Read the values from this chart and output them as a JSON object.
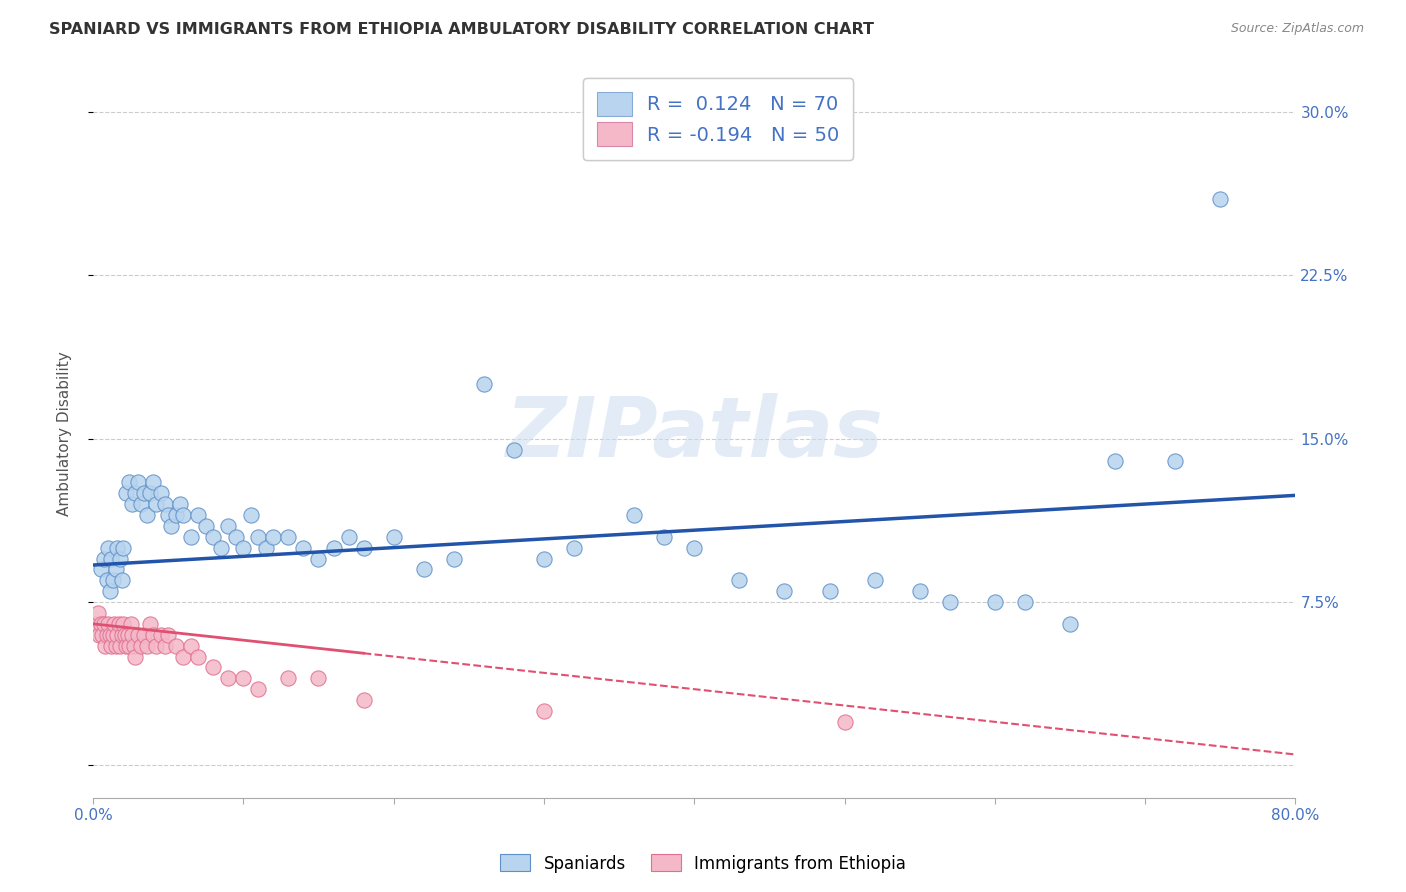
{
  "title": "SPANIARD VS IMMIGRANTS FROM ETHIOPIA AMBULATORY DISABILITY CORRELATION CHART",
  "source": "Source: ZipAtlas.com",
  "ylabel": "Ambulatory Disability",
  "yticks": [
    0.0,
    0.075,
    0.15,
    0.225,
    0.3
  ],
  "ytick_labels": [
    "",
    "7.5%",
    "15.0%",
    "22.5%",
    "30.0%"
  ],
  "xlim": [
    0.0,
    0.8
  ],
  "ylim": [
    -0.015,
    0.32
  ],
  "legend_entries": [
    {
      "color": "#b8d4ee",
      "R": "0.124",
      "N": "70"
    },
    {
      "color": "#f4b8c8",
      "R": "-0.194",
      "N": "50"
    }
  ],
  "legend_text_color": "#4472c4",
  "spaniards_facecolor": "#b8d4ee",
  "spaniards_edgecolor": "#6090c8",
  "ethiopia_facecolor": "#f4b8c8",
  "ethiopia_edgecolor": "#e07090",
  "spaniards_line_color": "#2255aa",
  "ethiopia_line_color": "#e05070",
  "watermark": "ZIPatlas",
  "spaniards_points": [
    [
      0.005,
      0.09
    ],
    [
      0.007,
      0.095
    ],
    [
      0.009,
      0.085
    ],
    [
      0.01,
      0.1
    ],
    [
      0.011,
      0.08
    ],
    [
      0.012,
      0.095
    ],
    [
      0.013,
      0.085
    ],
    [
      0.015,
      0.09
    ],
    [
      0.016,
      0.1
    ],
    [
      0.018,
      0.095
    ],
    [
      0.019,
      0.085
    ],
    [
      0.02,
      0.1
    ],
    [
      0.022,
      0.125
    ],
    [
      0.024,
      0.13
    ],
    [
      0.026,
      0.12
    ],
    [
      0.028,
      0.125
    ],
    [
      0.03,
      0.13
    ],
    [
      0.032,
      0.12
    ],
    [
      0.034,
      0.125
    ],
    [
      0.036,
      0.115
    ],
    [
      0.038,
      0.125
    ],
    [
      0.04,
      0.13
    ],
    [
      0.042,
      0.12
    ],
    [
      0.045,
      0.125
    ],
    [
      0.048,
      0.12
    ],
    [
      0.05,
      0.115
    ],
    [
      0.052,
      0.11
    ],
    [
      0.055,
      0.115
    ],
    [
      0.058,
      0.12
    ],
    [
      0.06,
      0.115
    ],
    [
      0.065,
      0.105
    ],
    [
      0.07,
      0.115
    ],
    [
      0.075,
      0.11
    ],
    [
      0.08,
      0.105
    ],
    [
      0.085,
      0.1
    ],
    [
      0.09,
      0.11
    ],
    [
      0.095,
      0.105
    ],
    [
      0.1,
      0.1
    ],
    [
      0.105,
      0.115
    ],
    [
      0.11,
      0.105
    ],
    [
      0.115,
      0.1
    ],
    [
      0.12,
      0.105
    ],
    [
      0.13,
      0.105
    ],
    [
      0.14,
      0.1
    ],
    [
      0.15,
      0.095
    ],
    [
      0.16,
      0.1
    ],
    [
      0.17,
      0.105
    ],
    [
      0.18,
      0.1
    ],
    [
      0.2,
      0.105
    ],
    [
      0.22,
      0.09
    ],
    [
      0.24,
      0.095
    ],
    [
      0.26,
      0.175
    ],
    [
      0.28,
      0.145
    ],
    [
      0.3,
      0.095
    ],
    [
      0.32,
      0.1
    ],
    [
      0.36,
      0.115
    ],
    [
      0.38,
      0.105
    ],
    [
      0.4,
      0.1
    ],
    [
      0.43,
      0.085
    ],
    [
      0.46,
      0.08
    ],
    [
      0.49,
      0.08
    ],
    [
      0.52,
      0.085
    ],
    [
      0.55,
      0.08
    ],
    [
      0.57,
      0.075
    ],
    [
      0.6,
      0.075
    ],
    [
      0.62,
      0.075
    ],
    [
      0.65,
      0.065
    ],
    [
      0.68,
      0.14
    ],
    [
      0.72,
      0.14
    ],
    [
      0.75,
      0.26
    ]
  ],
  "ethiopia_points": [
    [
      0.002,
      0.065
    ],
    [
      0.003,
      0.07
    ],
    [
      0.004,
      0.06
    ],
    [
      0.005,
      0.065
    ],
    [
      0.006,
      0.06
    ],
    [
      0.007,
      0.065
    ],
    [
      0.008,
      0.055
    ],
    [
      0.009,
      0.06
    ],
    [
      0.01,
      0.065
    ],
    [
      0.011,
      0.06
    ],
    [
      0.012,
      0.055
    ],
    [
      0.013,
      0.06
    ],
    [
      0.014,
      0.065
    ],
    [
      0.015,
      0.055
    ],
    [
      0.016,
      0.06
    ],
    [
      0.017,
      0.065
    ],
    [
      0.018,
      0.055
    ],
    [
      0.019,
      0.06
    ],
    [
      0.02,
      0.065
    ],
    [
      0.021,
      0.06
    ],
    [
      0.022,
      0.055
    ],
    [
      0.023,
      0.06
    ],
    [
      0.024,
      0.055
    ],
    [
      0.025,
      0.065
    ],
    [
      0.026,
      0.06
    ],
    [
      0.027,
      0.055
    ],
    [
      0.028,
      0.05
    ],
    [
      0.03,
      0.06
    ],
    [
      0.032,
      0.055
    ],
    [
      0.034,
      0.06
    ],
    [
      0.036,
      0.055
    ],
    [
      0.038,
      0.065
    ],
    [
      0.04,
      0.06
    ],
    [
      0.042,
      0.055
    ],
    [
      0.045,
      0.06
    ],
    [
      0.048,
      0.055
    ],
    [
      0.05,
      0.06
    ],
    [
      0.055,
      0.055
    ],
    [
      0.06,
      0.05
    ],
    [
      0.065,
      0.055
    ],
    [
      0.07,
      0.05
    ],
    [
      0.08,
      0.045
    ],
    [
      0.09,
      0.04
    ],
    [
      0.1,
      0.04
    ],
    [
      0.11,
      0.035
    ],
    [
      0.13,
      0.04
    ],
    [
      0.15,
      0.04
    ],
    [
      0.18,
      0.03
    ],
    [
      0.3,
      0.025
    ],
    [
      0.5,
      0.02
    ]
  ]
}
